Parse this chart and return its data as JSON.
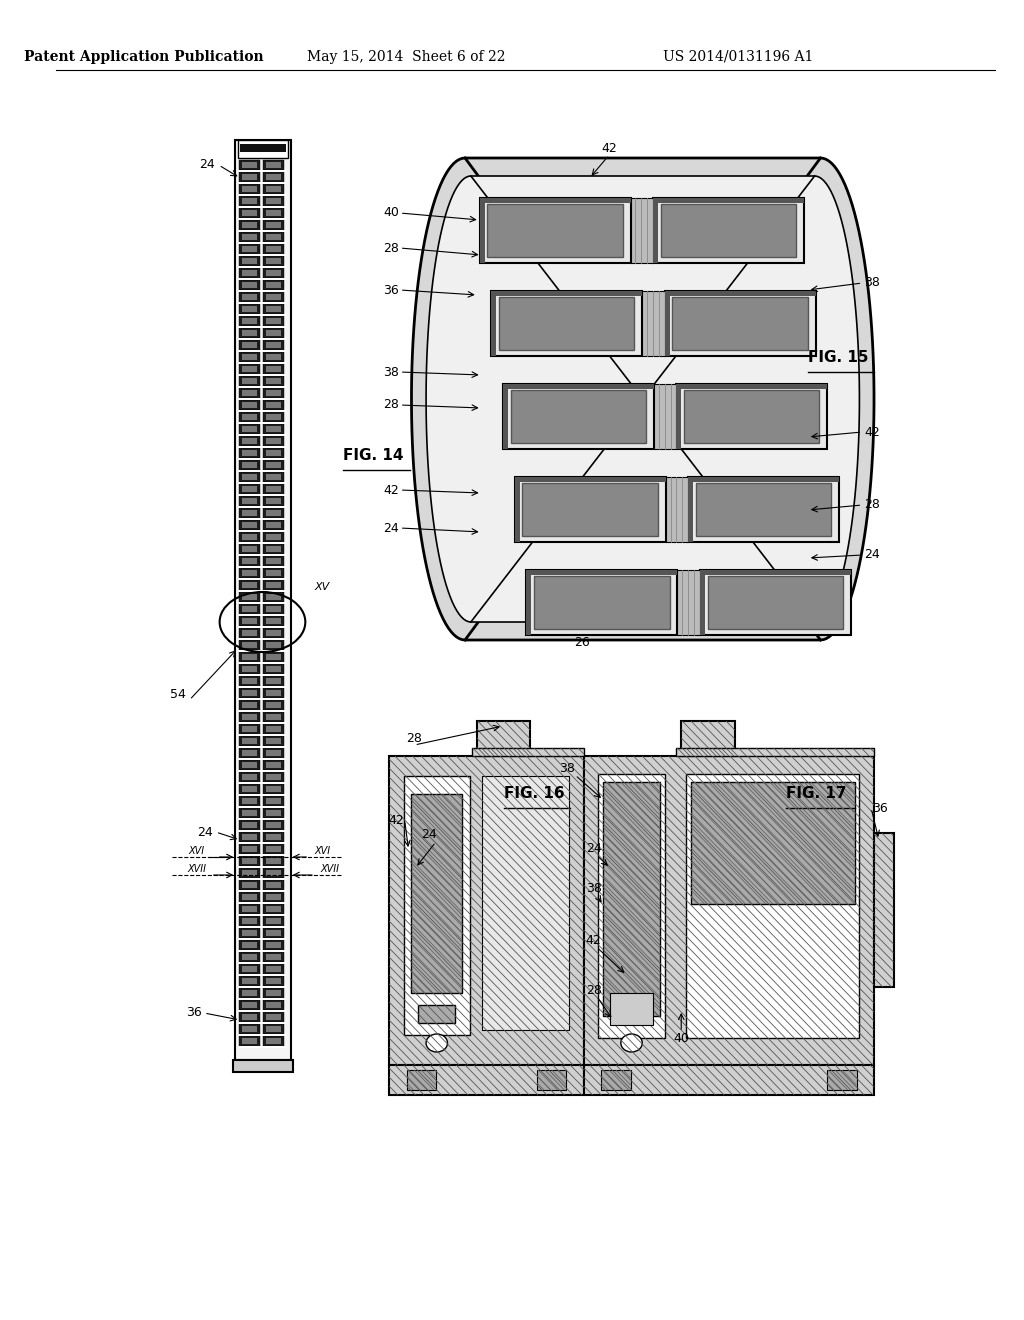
{
  "bg_color": "#ffffff",
  "header_left": "Patent Application Publication",
  "header_mid": "May 15, 2014  Sheet 6 of 22",
  "header_right": "US 2014/0131196 A1",
  "fig14_label": "FIG. 14",
  "fig15_label": "FIG. 15",
  "fig16_label": "FIG. 16",
  "fig17_label": "FIG. 17",
  "lfs": 9,
  "hfs": 10,
  "ffs": 11
}
